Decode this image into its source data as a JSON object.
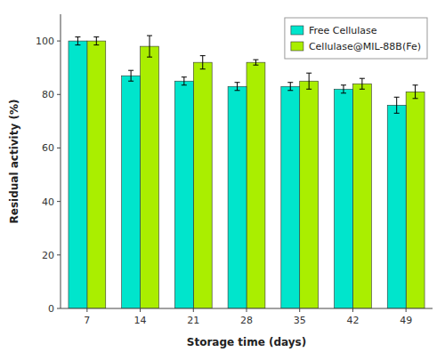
{
  "chart_data": {
    "type": "bar",
    "xlabel": "Storage time (days)",
    "ylabel": "Residual activity (%)",
    "categories": [
      7,
      14,
      21,
      28,
      35,
      42,
      49
    ],
    "series": [
      {
        "name": "Free Cellulase",
        "color": "#00E5CC",
        "values": [
          100,
          87,
          85,
          83,
          83,
          82,
          76
        ],
        "errors": [
          1.5,
          2.0,
          1.5,
          1.5,
          1.5,
          1.5,
          3.0
        ]
      },
      {
        "name": "Cellulase@MIL-88B(Fe)",
        "color": "#AAEE00",
        "values": [
          100,
          98,
          92,
          92,
          85,
          84,
          81
        ],
        "errors": [
          1.5,
          4.0,
          2.5,
          1.0,
          3.0,
          2.0,
          2.5
        ]
      }
    ],
    "ylim": [
      0,
      110
    ],
    "yticks": [
      0,
      20,
      40,
      60,
      80,
      100
    ],
    "grid": false,
    "legend": "upper right"
  }
}
